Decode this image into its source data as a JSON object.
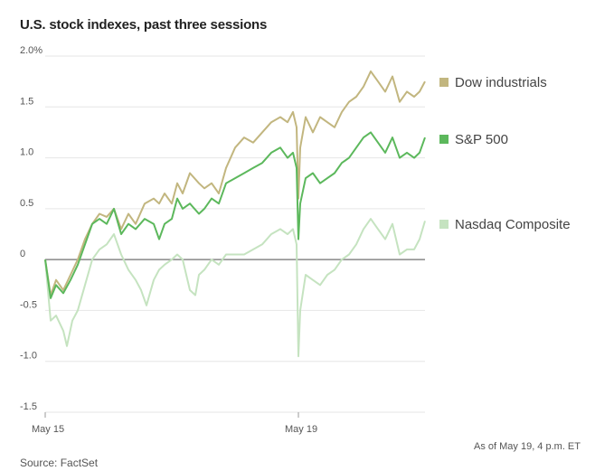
{
  "header": {
    "title": "U.S. stock indexes, past three sessions"
  },
  "footer": {
    "note": "As of May 19, 4 p.m. ET",
    "source": "Source: FactSet"
  },
  "chart_data": {
    "type": "line",
    "title": "U.S. stock indexes, past three sessions",
    "ylim": [
      -1.5,
      2.0
    ],
    "yticks": [
      {
        "value": 2.0,
        "label": "2.0%"
      },
      {
        "value": 1.5,
        "label": "1.5"
      },
      {
        "value": 1.0,
        "label": "1.0"
      },
      {
        "value": 0.5,
        "label": "0.5"
      },
      {
        "value": 0,
        "label": "0"
      },
      {
        "value": -0.5,
        "label": "-0.5"
      },
      {
        "value": -1.0,
        "label": "-1.0"
      },
      {
        "value": -1.5,
        "label": "-1.5"
      }
    ],
    "xlim": [
      0,
      21
    ],
    "xticks": [
      {
        "value": 0,
        "label": "May 15"
      },
      {
        "value": 14,
        "label": "May 19"
      }
    ],
    "grid": true,
    "legend": "right",
    "series": [
      {
        "name": "Dow industrials",
        "color": "#c2b67f",
        "points": [
          [
            0,
            0
          ],
          [
            0.3,
            -0.35
          ],
          [
            0.6,
            -0.2
          ],
          [
            1,
            -0.3
          ],
          [
            1.4,
            -0.15
          ],
          [
            1.8,
            0
          ],
          [
            2.2,
            0.2
          ],
          [
            2.6,
            0.35
          ],
          [
            3,
            0.45
          ],
          [
            3.4,
            0.42
          ],
          [
            3.8,
            0.5
          ],
          [
            4.2,
            0.3
          ],
          [
            4.6,
            0.45
          ],
          [
            5,
            0.35
          ],
          [
            5.5,
            0.55
          ],
          [
            6,
            0.6
          ],
          [
            6.3,
            0.55
          ],
          [
            6.6,
            0.65
          ],
          [
            7,
            0.55
          ],
          [
            7.3,
            0.75
          ],
          [
            7.6,
            0.65
          ],
          [
            8,
            0.85
          ],
          [
            8.5,
            0.75
          ],
          [
            8.8,
            0.7
          ],
          [
            9.2,
            0.75
          ],
          [
            9.6,
            0.65
          ],
          [
            10,
            0.9
          ],
          [
            10.5,
            1.1
          ],
          [
            11,
            1.2
          ],
          [
            11.5,
            1.15
          ],
          [
            12,
            1.25
          ],
          [
            12.5,
            1.35
          ],
          [
            13,
            1.4
          ],
          [
            13.4,
            1.35
          ],
          [
            13.7,
            1.45
          ],
          [
            13.9,
            1.3
          ],
          [
            14,
            0.6
          ],
          [
            14.1,
            1.1
          ],
          [
            14.4,
            1.4
          ],
          [
            14.8,
            1.25
          ],
          [
            15.2,
            1.4
          ],
          [
            15.6,
            1.35
          ],
          [
            16,
            1.3
          ],
          [
            16.4,
            1.45
          ],
          [
            16.8,
            1.55
          ],
          [
            17.2,
            1.6
          ],
          [
            17.6,
            1.7
          ],
          [
            18,
            1.85
          ],
          [
            18.4,
            1.75
          ],
          [
            18.8,
            1.65
          ],
          [
            19.2,
            1.8
          ],
          [
            19.6,
            1.55
          ],
          [
            20,
            1.65
          ],
          [
            20.4,
            1.6
          ],
          [
            20.7,
            1.65
          ],
          [
            21,
            1.75
          ]
        ]
      },
      {
        "name": "S&P 500",
        "color": "#5cb85c",
        "points": [
          [
            0,
            0
          ],
          [
            0.3,
            -0.38
          ],
          [
            0.6,
            -0.25
          ],
          [
            1,
            -0.33
          ],
          [
            1.4,
            -0.2
          ],
          [
            1.8,
            -0.05
          ],
          [
            2.2,
            0.15
          ],
          [
            2.6,
            0.35
          ],
          [
            3,
            0.4
          ],
          [
            3.4,
            0.35
          ],
          [
            3.8,
            0.5
          ],
          [
            4.2,
            0.25
          ],
          [
            4.6,
            0.35
          ],
          [
            5,
            0.3
          ],
          [
            5.5,
            0.4
          ],
          [
            6,
            0.35
          ],
          [
            6.3,
            0.2
          ],
          [
            6.6,
            0.35
          ],
          [
            7,
            0.4
          ],
          [
            7.3,
            0.6
          ],
          [
            7.6,
            0.5
          ],
          [
            8,
            0.55
          ],
          [
            8.5,
            0.45
          ],
          [
            8.8,
            0.5
          ],
          [
            9.2,
            0.6
          ],
          [
            9.6,
            0.55
          ],
          [
            10,
            0.75
          ],
          [
            10.5,
            0.8
          ],
          [
            11,
            0.85
          ],
          [
            11.5,
            0.9
          ],
          [
            12,
            0.95
          ],
          [
            12.5,
            1.05
          ],
          [
            13,
            1.1
          ],
          [
            13.4,
            1.0
          ],
          [
            13.7,
            1.05
          ],
          [
            13.9,
            0.9
          ],
          [
            14,
            0.2
          ],
          [
            14.1,
            0.55
          ],
          [
            14.4,
            0.8
          ],
          [
            14.8,
            0.85
          ],
          [
            15.2,
            0.75
          ],
          [
            15.6,
            0.8
          ],
          [
            16,
            0.85
          ],
          [
            16.4,
            0.95
          ],
          [
            16.8,
            1.0
          ],
          [
            17.2,
            1.1
          ],
          [
            17.6,
            1.2
          ],
          [
            18,
            1.25
          ],
          [
            18.4,
            1.15
          ],
          [
            18.8,
            1.05
          ],
          [
            19.2,
            1.2
          ],
          [
            19.6,
            1.0
          ],
          [
            20,
            1.05
          ],
          [
            20.4,
            1.0
          ],
          [
            20.7,
            1.05
          ],
          [
            21,
            1.2
          ]
        ]
      },
      {
        "name": "Nasdaq Composite",
        "color": "#c5e3c0",
        "points": [
          [
            0,
            0
          ],
          [
            0.3,
            -0.6
          ],
          [
            0.6,
            -0.55
          ],
          [
            1,
            -0.7
          ],
          [
            1.2,
            -0.85
          ],
          [
            1.5,
            -0.6
          ],
          [
            1.8,
            -0.5
          ],
          [
            2.2,
            -0.25
          ],
          [
            2.6,
            0.0
          ],
          [
            3,
            0.1
          ],
          [
            3.4,
            0.15
          ],
          [
            3.8,
            0.25
          ],
          [
            4.2,
            0.05
          ],
          [
            4.6,
            -0.1
          ],
          [
            5,
            -0.2
          ],
          [
            5.3,
            -0.3
          ],
          [
            5.6,
            -0.45
          ],
          [
            6,
            -0.2
          ],
          [
            6.3,
            -0.1
          ],
          [
            6.6,
            -0.05
          ],
          [
            7,
            0
          ],
          [
            7.3,
            0.05
          ],
          [
            7.6,
            0
          ],
          [
            8,
            -0.3
          ],
          [
            8.3,
            -0.35
          ],
          [
            8.5,
            -0.15
          ],
          [
            8.8,
            -0.1
          ],
          [
            9.2,
            0
          ],
          [
            9.6,
            -0.05
          ],
          [
            10,
            0.05
          ],
          [
            10.5,
            0.05
          ],
          [
            11,
            0.05
          ],
          [
            11.5,
            0.1
          ],
          [
            12,
            0.15
          ],
          [
            12.5,
            0.25
          ],
          [
            13,
            0.3
          ],
          [
            13.4,
            0.25
          ],
          [
            13.7,
            0.3
          ],
          [
            13.9,
            0.15
          ],
          [
            14,
            -0.95
          ],
          [
            14.1,
            -0.5
          ],
          [
            14.4,
            -0.15
          ],
          [
            14.8,
            -0.2
          ],
          [
            15.2,
            -0.25
          ],
          [
            15.6,
            -0.15
          ],
          [
            16,
            -0.1
          ],
          [
            16.4,
            0
          ],
          [
            16.8,
            0.05
          ],
          [
            17.2,
            0.15
          ],
          [
            17.6,
            0.3
          ],
          [
            18,
            0.4
          ],
          [
            18.4,
            0.3
          ],
          [
            18.8,
            0.2
          ],
          [
            19.2,
            0.35
          ],
          [
            19.6,
            0.05
          ],
          [
            20,
            0.1
          ],
          [
            20.4,
            0.1
          ],
          [
            20.7,
            0.2
          ],
          [
            21,
            0.38
          ]
        ]
      }
    ]
  }
}
